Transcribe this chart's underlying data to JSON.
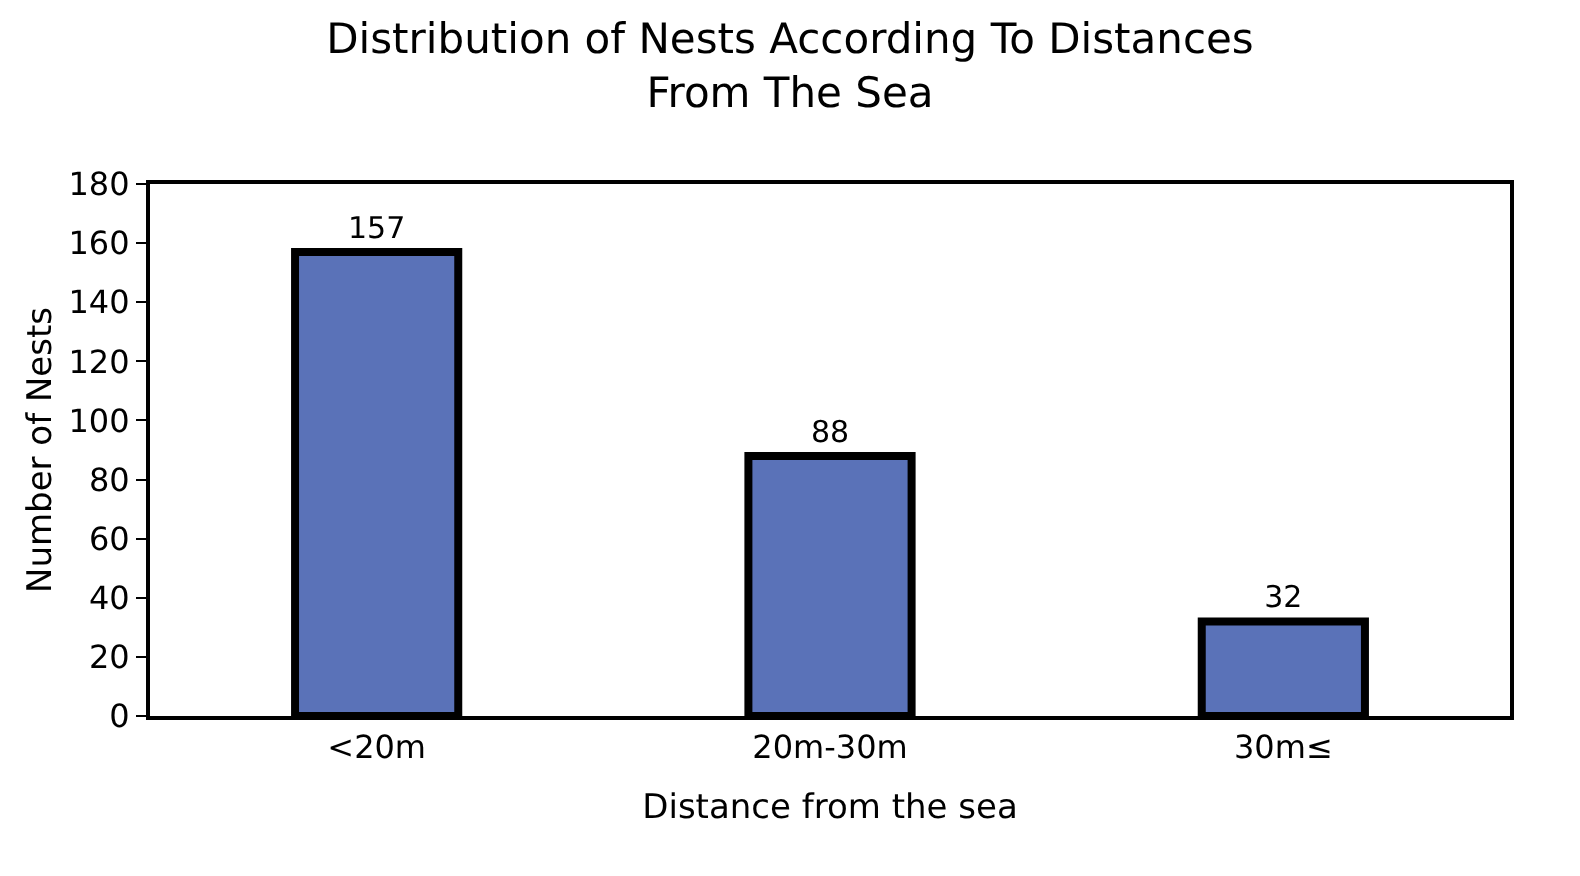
{
  "chart_data": {
    "type": "bar",
    "title": "Distribution of Nests According To Distances\nFrom The Sea",
    "xlabel": "Distance from the sea",
    "ylabel": "Number of Nests",
    "categories": [
      "<20m",
      "20m-30m",
      "30m≤"
    ],
    "values": [
      157,
      88,
      32
    ],
    "color": "#5a72b8",
    "ylim": [
      0,
      180
    ],
    "yticks": [
      0,
      20,
      40,
      60,
      80,
      100,
      120,
      140,
      160,
      180
    ],
    "data_labels": true
  }
}
